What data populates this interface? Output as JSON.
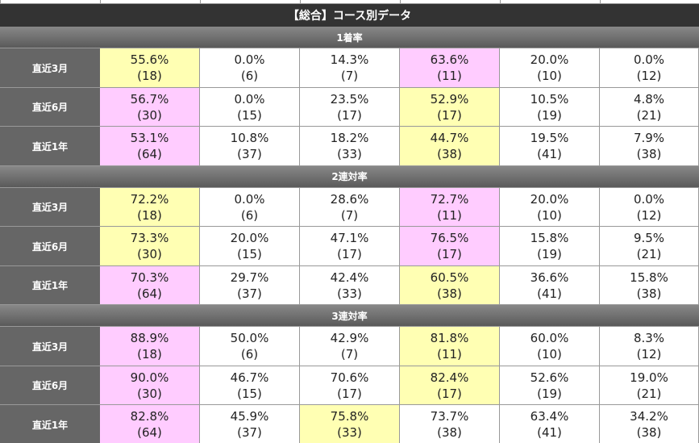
{
  "header": {
    "title": "【総合】コース別データ"
  },
  "sections": [
    {
      "title": "1着率",
      "rows": [
        {
          "label": "直近3月",
          "cells": [
            {
              "pct": "55.6%",
              "n": "(18)",
              "bg": "#ffffb3"
            },
            {
              "pct": "0.0%",
              "n": "(6)"
            },
            {
              "pct": "14.3%",
              "n": "(7)"
            },
            {
              "pct": "63.6%",
              "n": "(11)",
              "bg": "#ffccff"
            },
            {
              "pct": "20.0%",
              "n": "(10)"
            },
            {
              "pct": "0.0%",
              "n": "(12)"
            }
          ]
        },
        {
          "label": "直近6月",
          "cells": [
            {
              "pct": "56.7%",
              "n": "(30)",
              "bg": "#ffccff"
            },
            {
              "pct": "0.0%",
              "n": "(15)"
            },
            {
              "pct": "23.5%",
              "n": "(17)"
            },
            {
              "pct": "52.9%",
              "n": "(17)",
              "bg": "#ffffb3"
            },
            {
              "pct": "10.5%",
              "n": "(19)"
            },
            {
              "pct": "4.8%",
              "n": "(21)"
            }
          ]
        },
        {
          "label": "直近1年",
          "cells": [
            {
              "pct": "53.1%",
              "n": "(64)",
              "bg": "#ffccff"
            },
            {
              "pct": "10.8%",
              "n": "(37)"
            },
            {
              "pct": "18.2%",
              "n": "(33)"
            },
            {
              "pct": "44.7%",
              "n": "(38)",
              "bg": "#ffffb3"
            },
            {
              "pct": "19.5%",
              "n": "(41)"
            },
            {
              "pct": "7.9%",
              "n": "(38)"
            }
          ]
        }
      ]
    },
    {
      "title": "2連対率",
      "rows": [
        {
          "label": "直近3月",
          "cells": [
            {
              "pct": "72.2%",
              "n": "(18)",
              "bg": "#ffffb3"
            },
            {
              "pct": "0.0%",
              "n": "(6)"
            },
            {
              "pct": "28.6%",
              "n": "(7)"
            },
            {
              "pct": "72.7%",
              "n": "(11)",
              "bg": "#ffccff"
            },
            {
              "pct": "20.0%",
              "n": "(10)"
            },
            {
              "pct": "0.0%",
              "n": "(12)"
            }
          ]
        },
        {
          "label": "直近6月",
          "cells": [
            {
              "pct": "73.3%",
              "n": "(30)",
              "bg": "#ffffb3"
            },
            {
              "pct": "20.0%",
              "n": "(15)"
            },
            {
              "pct": "47.1%",
              "n": "(17)"
            },
            {
              "pct": "76.5%",
              "n": "(17)",
              "bg": "#ffccff"
            },
            {
              "pct": "15.8%",
              "n": "(19)"
            },
            {
              "pct": "9.5%",
              "n": "(21)"
            }
          ]
        },
        {
          "label": "直近1年",
          "cells": [
            {
              "pct": "70.3%",
              "n": "(64)",
              "bg": "#ffccff"
            },
            {
              "pct": "29.7%",
              "n": "(37)"
            },
            {
              "pct": "42.4%",
              "n": "(33)"
            },
            {
              "pct": "60.5%",
              "n": "(38)",
              "bg": "#ffffb3"
            },
            {
              "pct": "36.6%",
              "n": "(41)"
            },
            {
              "pct": "15.8%",
              "n": "(38)"
            }
          ]
        }
      ]
    },
    {
      "title": "3連対率",
      "rows": [
        {
          "label": "直近3月",
          "cells": [
            {
              "pct": "88.9%",
              "n": "(18)",
              "bg": "#ffccff"
            },
            {
              "pct": "50.0%",
              "n": "(6)"
            },
            {
              "pct": "42.9%",
              "n": "(7)"
            },
            {
              "pct": "81.8%",
              "n": "(11)",
              "bg": "#ffffb3"
            },
            {
              "pct": "60.0%",
              "n": "(10)"
            },
            {
              "pct": "8.3%",
              "n": "(12)"
            }
          ]
        },
        {
          "label": "直近6月",
          "cells": [
            {
              "pct": "90.0%",
              "n": "(30)",
              "bg": "#ffccff"
            },
            {
              "pct": "46.7%",
              "n": "(15)"
            },
            {
              "pct": "70.6%",
              "n": "(17)"
            },
            {
              "pct": "82.4%",
              "n": "(17)",
              "bg": "#ffffb3"
            },
            {
              "pct": "52.6%",
              "n": "(19)"
            },
            {
              "pct": "19.0%",
              "n": "(21)"
            }
          ]
        },
        {
          "label": "直近1年",
          "cells": [
            {
              "pct": "82.8%",
              "n": "(64)",
              "bg": "#ffccff"
            },
            {
              "pct": "45.9%",
              "n": "(37)"
            },
            {
              "pct": "75.8%",
              "n": "(33)",
              "bg": "#ffffb3"
            },
            {
              "pct": "73.7%",
              "n": "(38)"
            },
            {
              "pct": "63.4%",
              "n": "(41)"
            },
            {
              "pct": "34.2%",
              "n": "(38)"
            }
          ]
        }
      ]
    }
  ]
}
